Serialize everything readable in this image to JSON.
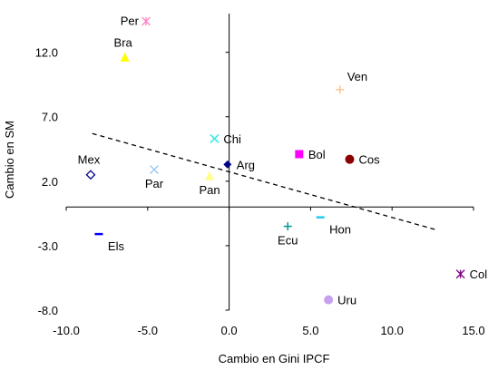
{
  "chart_data": {
    "type": "scatter",
    "title": "",
    "xlabel": "Cambio en Gini IPCF",
    "ylabel": "Cambio en SM",
    "xlim": [
      -10,
      15
    ],
    "ylim": [
      -8,
      15
    ],
    "x_ticks": [
      "-10.0",
      "-5.0",
      "0.0",
      "5.0",
      "10.0",
      "15.0"
    ],
    "x_tick_values": [
      -10,
      -5,
      0,
      5,
      10,
      15
    ],
    "y_ticks": [
      "12.0",
      "7.0",
      "2.0",
      "-3.0",
      "-8.0"
    ],
    "y_tick_values": [
      12,
      7,
      2,
      -3,
      -8
    ],
    "grid": false,
    "legend": "none",
    "points": [
      {
        "label": "Per",
        "x": -5.1,
        "y": 14.4,
        "marker": "asterisk",
        "color": "#ff88c8",
        "label_pos": "left"
      },
      {
        "label": "Bra",
        "x": -6.4,
        "y": 11.6,
        "marker": "triangle",
        "color": "#ffff00",
        "label_pos": "above-left"
      },
      {
        "label": "Ven",
        "x": 6.8,
        "y": 9.1,
        "marker": "plus",
        "color": "#ffc38a",
        "label_pos": "above-right"
      },
      {
        "label": "Chi",
        "x": -0.9,
        "y": 5.3,
        "marker": "x",
        "color": "#33eaea",
        "label_pos": "right"
      },
      {
        "label": "Bol",
        "x": 4.3,
        "y": 4.1,
        "marker": "square",
        "color": "#ff00ff",
        "label_pos": "right"
      },
      {
        "label": "Cos",
        "x": 7.4,
        "y": 3.7,
        "marker": "circle",
        "color": "#8b0000",
        "label_pos": "right"
      },
      {
        "label": "Arg",
        "x": -0.1,
        "y": 3.3,
        "marker": "diamond",
        "color": "#00008b",
        "label_pos": "right"
      },
      {
        "label": "Mex",
        "x": -8.5,
        "y": 2.5,
        "marker": "diamond-open",
        "color": "#00008b",
        "label_pos": "above-left"
      },
      {
        "label": "Par",
        "x": -4.6,
        "y": 2.9,
        "marker": "x",
        "color": "#9ec9f0",
        "label_pos": "below"
      },
      {
        "label": "Pan",
        "x": -1.2,
        "y": 2.4,
        "marker": "triangle",
        "color": "#ffff88",
        "label_pos": "below"
      },
      {
        "label": "Ecu",
        "x": 3.6,
        "y": -1.5,
        "marker": "plus",
        "color": "#009999",
        "label_pos": "below"
      },
      {
        "label": "Hon",
        "x": 5.6,
        "y": -0.8,
        "marker": "dash",
        "color": "#22ccee",
        "label_pos": "below-right"
      },
      {
        "label": "Els",
        "x": -8.0,
        "y": -2.1,
        "marker": "dash",
        "color": "#0000ff",
        "label_pos": "below-right"
      },
      {
        "label": "Col",
        "x": 14.2,
        "y": -5.2,
        "marker": "asterisk",
        "color": "#7a0080",
        "label_pos": "right"
      },
      {
        "label": "Uru",
        "x": 6.1,
        "y": -7.2,
        "marker": "circle",
        "color": "#c8a0f0",
        "label_pos": "right"
      }
    ],
    "trendline": {
      "style": "dashed",
      "color": "#000000",
      "x": [
        -8.4,
        12.8
      ],
      "y": [
        5.7,
        -1.8
      ]
    }
  }
}
